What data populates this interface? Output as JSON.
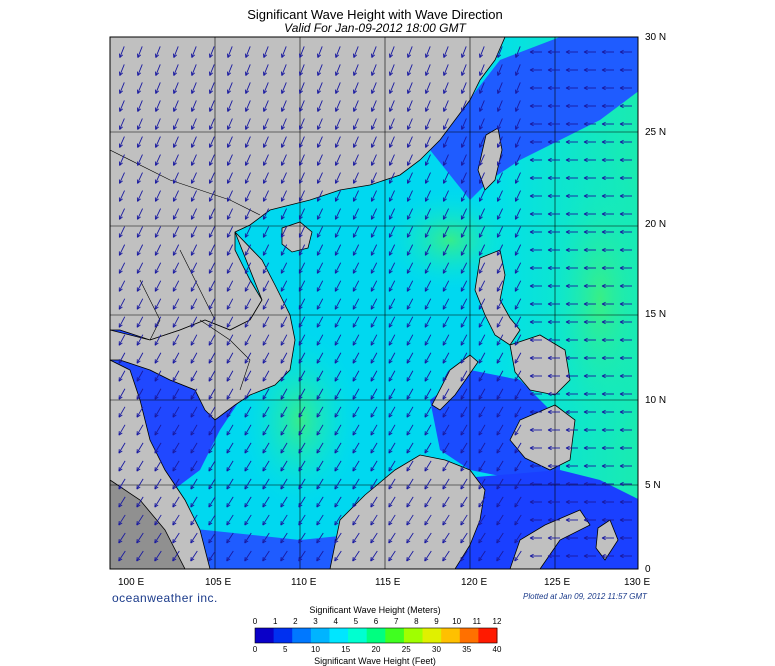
{
  "map": {
    "title": "Significant Wave Height with Wave Direction",
    "subtitle": "Valid For Jan-09-2012 18:00 GMT",
    "lat_labels": [
      "30 N",
      "25 N",
      "20 N",
      "15 N",
      "10 N",
      "5 N",
      "0"
    ],
    "lon_labels": [
      "100 E",
      "105 E",
      "110 E",
      "115 E",
      "120 E",
      "125 E",
      "130 E"
    ],
    "brand": "oceanweather inc.",
    "plotted": "Plotted at Jan 09, 2012 11:57 GMT"
  },
  "colorbar": {
    "title_meters": "Significant Wave Height (Meters)",
    "title_feet": "Significant Wave Height (Feet)",
    "meter_ticks": [
      "0",
      "1",
      "2",
      "3",
      "4",
      "5",
      "6",
      "7",
      "8",
      "9",
      "10",
      "11",
      "12"
    ],
    "feet_ticks": [
      "0",
      "5",
      "10",
      "15",
      "20",
      "25",
      "30",
      "35",
      "40"
    ],
    "colors": [
      "#0a00c8",
      "#0030f0",
      "#0078ff",
      "#00b4ff",
      "#00e6ff",
      "#00ffd0",
      "#00ff80",
      "#40ff20",
      "#a0ff00",
      "#e0f000",
      "#ffc000",
      "#ff7000",
      "#ff1a00"
    ]
  },
  "colors": {
    "land": "#c0c0c0",
    "coast": "#000000",
    "grid": "#000000",
    "arrow": "#1a1aa0",
    "sea_main": "#00e0f0",
    "sea_shallow": "#1f5cff",
    "sea_mid": "#00a8ff",
    "sea_high": "#30f0a0",
    "brand": "#1a3a8a"
  }
}
